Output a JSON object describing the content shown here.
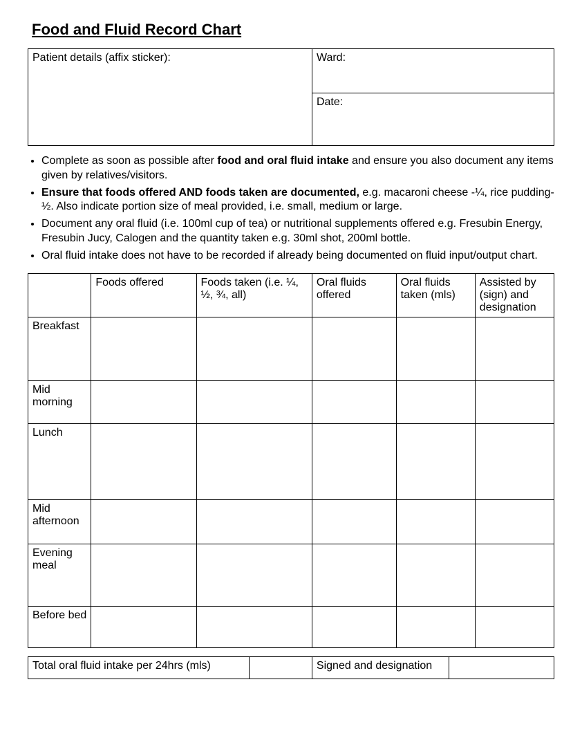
{
  "title": "Food and Fluid Record Chart",
  "info": {
    "patient_label": "Patient details (affix sticker):",
    "ward_label": "Ward:",
    "date_label": "Date:"
  },
  "bullets": {
    "b1a": "Complete as soon as possible after ",
    "b1b": "food and oral fluid intake",
    "b1c": " and ensure you also document any items given by relatives/visitors.",
    "b2a": "Ensure that foods offered AND foods taken are documented,",
    "b2b": " e.g. macaroni cheese -¼, rice pudding- ½.  Also indicate portion size of meal provided, i.e. small, medium or large.",
    "b3": "Document any oral fluid (i.e. 100ml cup of tea) or nutritional supplements offered e.g. Fresubin Energy, Fresubin Jucy, Calogen and the quantity taken e.g. 30ml shot, 200ml bottle.",
    "b4": "Oral fluid intake does not have to be recorded if already being documented on fluid input/output chart."
  },
  "columns": {
    "c0": "",
    "c1": "Foods offered",
    "c2": "Foods taken (i.e. ¼, ½, ¾, all)",
    "c3": "Oral fluids offered",
    "c4": "Oral fluids taken (mls)",
    "c5": "Assisted by (sign) and designation"
  },
  "rows": {
    "breakfast": "Breakfast",
    "midmorning": "Mid morning",
    "lunch": "Lunch",
    "midafternoon": "Mid afternoon",
    "evening": "Evening meal",
    "beforebed": "Before bed"
  },
  "footer": {
    "total_label": "Total oral fluid intake per 24hrs (mls)",
    "signed_label": "Signed and designation"
  }
}
